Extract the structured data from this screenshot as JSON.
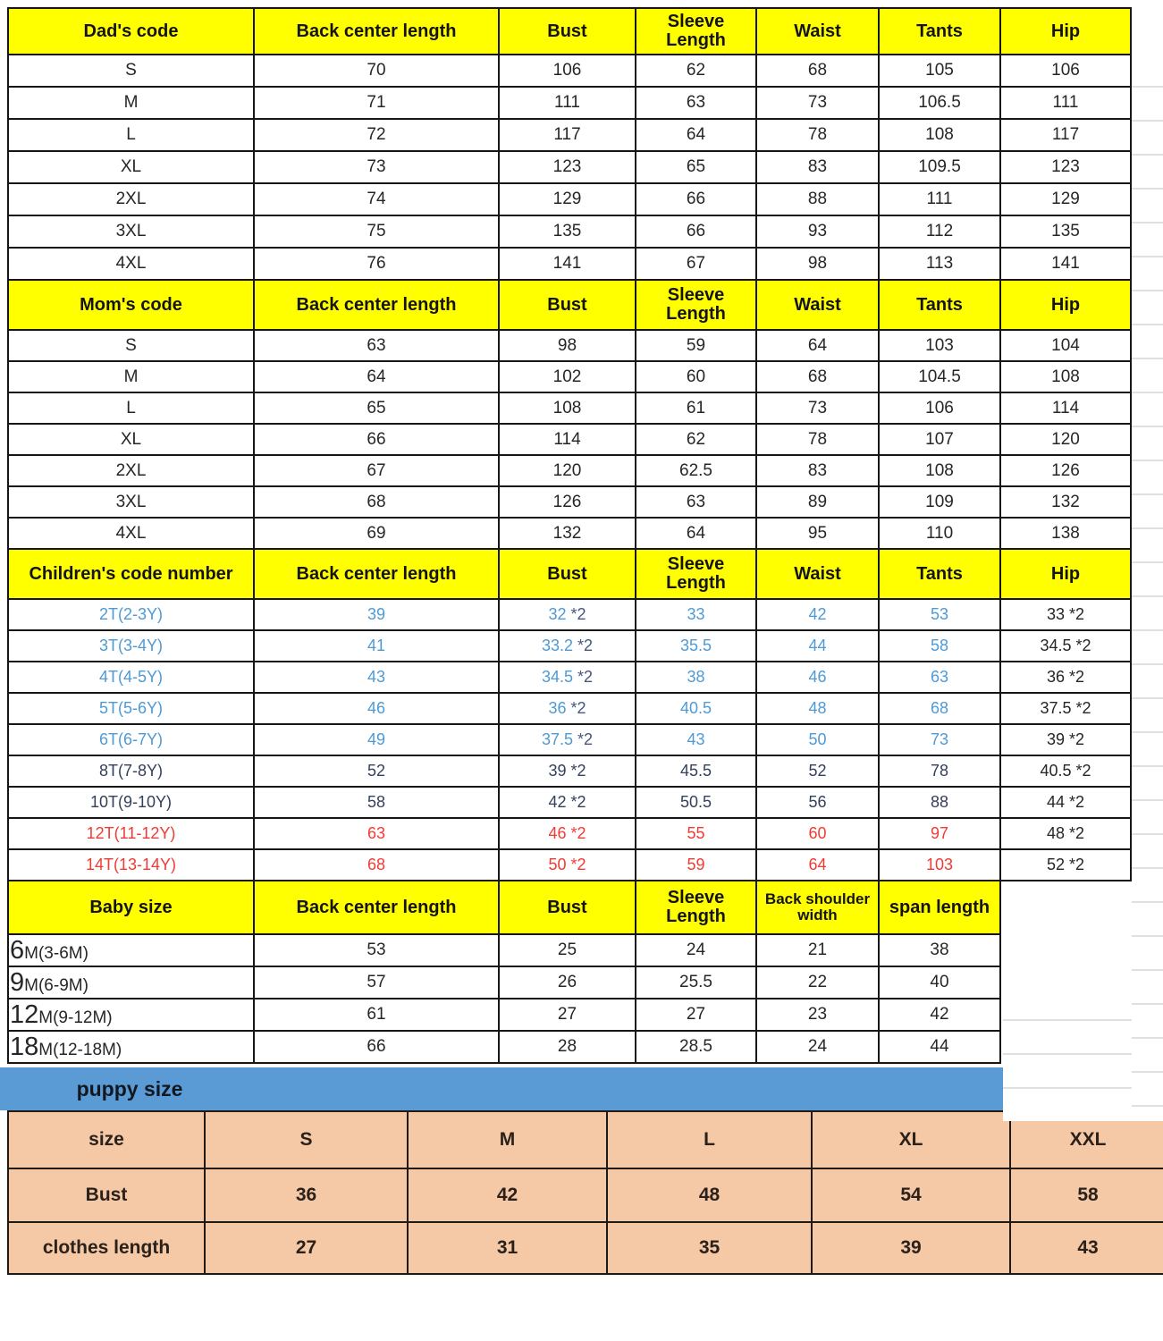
{
  "chart_data": [
    {
      "type": "table",
      "title": "Dad's code",
      "columns": [
        "Dad's code",
        "Back center length",
        "Bust",
        "Sleeve Length",
        "Waist",
        "Tants",
        "Hip"
      ],
      "rows": [
        [
          "S",
          "70",
          "106",
          "62",
          "68",
          "105",
          "106"
        ],
        [
          "M",
          "71",
          "111",
          "63",
          "73",
          "106.5",
          "111"
        ],
        [
          "L",
          "72",
          "117",
          "64",
          "78",
          "108",
          "117"
        ],
        [
          "XL",
          "73",
          "123",
          "65",
          "83",
          "109.5",
          "123"
        ],
        [
          "2XL",
          "74",
          "129",
          "66",
          "88",
          "111",
          "129"
        ],
        [
          "3XL",
          "75",
          "135",
          "66",
          "93",
          "112",
          "135"
        ],
        [
          "4XL",
          "76",
          "141",
          "67",
          "98",
          "113",
          "141"
        ]
      ]
    },
    {
      "type": "table",
      "title": "Mom's code",
      "columns": [
        "Mom's code",
        "Back center length",
        "Bust",
        "Sleeve Length",
        "Waist",
        "Tants",
        "Hip"
      ],
      "rows": [
        [
          "S",
          "63",
          "98",
          "59",
          "64",
          "103",
          "104"
        ],
        [
          "M",
          "64",
          "102",
          "60",
          "68",
          "104.5",
          "108"
        ],
        [
          "L",
          "65",
          "108",
          "61",
          "73",
          "106",
          "114"
        ],
        [
          "XL",
          "66",
          "114",
          "62",
          "78",
          "107",
          "120"
        ],
        [
          "2XL",
          "67",
          "120",
          "62.5",
          "83",
          "108",
          "126"
        ],
        [
          "3XL",
          "68",
          "126",
          "63",
          "89",
          "109",
          "132"
        ],
        [
          "4XL",
          "69",
          "132",
          "64",
          "95",
          "110",
          "138"
        ]
      ]
    },
    {
      "type": "table",
      "title": "Children's code number",
      "columns": [
        "Children's code number",
        "Back center length",
        "Bust",
        "Sleeve Length",
        "Waist",
        "Tants",
        "Hip"
      ],
      "rows": [
        [
          "2T(2-3Y)",
          "39",
          "32 *2",
          "33",
          "42",
          "53",
          "33 *2"
        ],
        [
          "3T(3-4Y)",
          "41",
          "33.2 *2",
          "35.5",
          "44",
          "58",
          "34.5 *2"
        ],
        [
          "4T(4-5Y)",
          "43",
          "34.5 *2",
          "38",
          "46",
          "63",
          "36 *2"
        ],
        [
          "5T(5-6Y)",
          "46",
          "36 *2",
          "40.5",
          "48",
          "68",
          "37.5 *2"
        ],
        [
          "6T(6-7Y)",
          "49",
          "37.5 *2",
          "43",
          "50",
          "73",
          "39 *2"
        ],
        [
          "8T(7-8Y)",
          "52",
          "39 *2",
          "45.5",
          "52",
          "78",
          "40.5 *2"
        ],
        [
          "10T(9-10Y)",
          "58",
          "42 *2",
          "50.5",
          "56",
          "88",
          "44 *2"
        ],
        [
          "12T(11-12Y)",
          "63",
          "46 *2",
          "55",
          "60",
          "97",
          "48 *2"
        ],
        [
          "14T(13-14Y)",
          "68",
          "50 *2",
          "59",
          "64",
          "103",
          "52 *2"
        ]
      ]
    },
    {
      "type": "table",
      "title": "Baby size",
      "columns": [
        "Baby size",
        "Back center length",
        "Bust",
        "Sleeve Length",
        "Back shoulder width",
        "span length"
      ],
      "rows": [
        [
          "6M(3-6M)",
          "53",
          "25",
          "24",
          "21",
          "38"
        ],
        [
          "9M(6-9M)",
          "57",
          "26",
          "25.5",
          "22",
          "40"
        ],
        [
          "12M(9-12M)",
          "61",
          "27",
          "27",
          "23",
          "42"
        ],
        [
          "18M(12-18M)",
          "66",
          "28",
          "28.5",
          "24",
          "44"
        ]
      ]
    },
    {
      "type": "table",
      "title": "puppy size",
      "columns": [
        "size",
        "S",
        "M",
        "L",
        "XL",
        "XXL"
      ],
      "rows": [
        [
          "Bust",
          "36",
          "42",
          "48",
          "54",
          "58"
        ],
        [
          "clothes length",
          "27",
          "31",
          "35",
          "39",
          "43"
        ]
      ]
    }
  ],
  "ui": {
    "puppy_banner_label": "puppy size",
    "colors": {
      "black": "#262626",
      "blue": "#4e9ad5",
      "navy": "#33405c",
      "slate": "#45577c",
      "red": "#f23a33",
      "dark": "#2a211b",
      "header_bg": "#ffff00",
      "banner_bg": "#5b9bd5",
      "puppy_bg": "#f6c9a6",
      "border": "#161616",
      "gridline": "#e0e0e0"
    },
    "tables": [
      {
        "el": "t-dad",
        "cols": 7,
        "headers": [
          "Dad's code",
          "Back center length",
          "Bust",
          "Sleeve Length",
          "Waist",
          "Tants",
          "Hip"
        ],
        "rows": [
          {
            "color": "black",
            "cells": [
              "S",
              "70",
              "106",
              "62",
              "68",
              "105",
              "106"
            ]
          },
          {
            "color": "black",
            "cells": [
              "M",
              "71",
              "111",
              "63",
              "73",
              "106.5",
              "111"
            ]
          },
          {
            "color": "black",
            "cells": [
              "L",
              "72",
              "117",
              "64",
              "78",
              "108",
              "117"
            ]
          },
          {
            "color": "black",
            "cells": [
              "XL",
              "73",
              "123",
              "65",
              "83",
              "109.5",
              "123"
            ]
          },
          {
            "color": "black",
            "cells": [
              "2XL",
              "74",
              "129",
              "66",
              "88",
              "111",
              "129"
            ]
          },
          {
            "color": "black",
            "cells": [
              "3XL",
              "75",
              "135",
              "66",
              "93",
              "112",
              "135"
            ]
          },
          {
            "color": "black",
            "cells": [
              "4XL",
              "76",
              "141",
              "67",
              "98",
              "113",
              "141"
            ]
          }
        ]
      },
      {
        "el": "t-mom",
        "cols": 7,
        "headers": [
          "Mom's code",
          "Back center length",
          "Bust",
          "Sleeve Length",
          "Waist",
          "Tants",
          "Hip"
        ],
        "rows": [
          {
            "color": "black",
            "cells": [
              "S",
              "63",
              "98",
              "59",
              "64",
              "103",
              "104"
            ]
          },
          {
            "color": "black",
            "cells": [
              "M",
              "64",
              "102",
              "60",
              "68",
              "104.5",
              "108"
            ]
          },
          {
            "color": "black",
            "cells": [
              "L",
              "65",
              "108",
              "61",
              "73",
              "106",
              "114"
            ]
          },
          {
            "color": "black",
            "cells": [
              "XL",
              "66",
              "114",
              "62",
              "78",
              "107",
              "120"
            ]
          },
          {
            "color": "black",
            "cells": [
              "2XL",
              "67",
              "120",
              "62.5",
              "83",
              "108",
              "126"
            ]
          },
          {
            "color": "black",
            "cells": [
              "3XL",
              "68",
              "126",
              "63",
              "89",
              "109",
              "132"
            ]
          },
          {
            "color": "black",
            "cells": [
              "4XL",
              "69",
              "132",
              "64",
              "95",
              "110",
              "138"
            ]
          }
        ]
      },
      {
        "el": "t-children",
        "cols": 7,
        "headers": [
          "Children's code number",
          "Back center length",
          "Bust",
          "Sleeve Length",
          "Waist",
          "Tants",
          "Hip"
        ],
        "rows": [
          {
            "color": "blue",
            "cells": [
              "2T(2-3Y)",
              "39",
              {
                "parts": [
                  {
                    "t": "32"
                  },
                  {
                    "t": " *2",
                    "c": "slate"
                  }
                ]
              },
              "33",
              "42",
              "53",
              {
                "t": "33 *2",
                "c": "black"
              }
            ]
          },
          {
            "color": "blue",
            "cells": [
              "3T(3-4Y)",
              "41",
              {
                "parts": [
                  {
                    "t": "33.2"
                  },
                  {
                    "t": " *2",
                    "c": "slate"
                  }
                ]
              },
              "35.5",
              "44",
              "58",
              {
                "t": "34.5 *2",
                "c": "black"
              }
            ]
          },
          {
            "color": "blue",
            "cells": [
              "4T(4-5Y)",
              "43",
              {
                "parts": [
                  {
                    "t": "34.5"
                  },
                  {
                    "t": " *2",
                    "c": "slate"
                  }
                ]
              },
              "38",
              "46",
              "63",
              {
                "t": "36 *2",
                "c": "black"
              }
            ]
          },
          {
            "color": "blue",
            "cells": [
              "5T(5-6Y)",
              "46",
              {
                "parts": [
                  {
                    "t": "36"
                  },
                  {
                    "t": " *2",
                    "c": "slate"
                  }
                ]
              },
              "40.5",
              "48",
              "68",
              {
                "t": "37.5 *2",
                "c": "black"
              }
            ]
          },
          {
            "color": "blue",
            "cells": [
              "6T(6-7Y)",
              "49",
              {
                "parts": [
                  {
                    "t": "37.5"
                  },
                  {
                    "t": " *2",
                    "c": "slate"
                  }
                ]
              },
              "43",
              "50",
              "73",
              {
                "t": "39 *2",
                "c": "black"
              }
            ]
          },
          {
            "color": "navy",
            "cells": [
              "8T(7-8Y)",
              "52",
              "39 *2",
              "45.5",
              "52",
              "78",
              {
                "t": "40.5 *2",
                "c": "black"
              }
            ]
          },
          {
            "color": "navy",
            "cells": [
              "10T(9-10Y)",
              "58",
              "42 *2",
              "50.5",
              "56",
              "88",
              {
                "t": "44 *2",
                "c": "black"
              }
            ]
          },
          {
            "color": "red",
            "cells": [
              "12T(11-12Y)",
              "63",
              "46 *2",
              "55",
              "60",
              "97",
              {
                "t": "48 *2",
                "c": "black"
              }
            ]
          },
          {
            "color": "red",
            "cells": [
              "14T(13-14Y)",
              "68",
              "50 *2",
              "59",
              "64",
              "103",
              {
                "t": "52 *2",
                "c": "black"
              }
            ]
          }
        ]
      },
      {
        "el": "t-baby",
        "cols": 6,
        "headers": [
          "Baby size",
          "Back center length",
          "Bust",
          "Sleeve Length",
          "Back shoulder width",
          "span length"
        ],
        "rows": [
          {
            "color": "black",
            "cells": [
              {
                "parts": [
                  {
                    "t": "6",
                    "big": true
                  },
                  {
                    "t": "M(3-6M)"
                  }
                ]
              },
              "53",
              "25",
              "24",
              "21",
              "38"
            ]
          },
          {
            "color": "black",
            "cells": [
              {
                "parts": [
                  {
                    "t": "9",
                    "big": true
                  },
                  {
                    "t": "M(6-9M)"
                  }
                ]
              },
              "57",
              "26",
              "25.5",
              "22",
              "40"
            ]
          },
          {
            "color": "black",
            "cells": [
              {
                "parts": [
                  {
                    "t": "12",
                    "big": true
                  },
                  {
                    "t": "M(9-12M)"
                  }
                ]
              },
              "61",
              "27",
              "27",
              "23",
              "42"
            ]
          },
          {
            "color": "black",
            "cells": [
              {
                "parts": [
                  {
                    "t": "18",
                    "big": true
                  },
                  {
                    "t": "M(12-18M)"
                  }
                ]
              },
              "66",
              "28",
              "28.5",
              "24",
              "44"
            ]
          }
        ]
      },
      {
        "el": "t-puppy",
        "cols": 6,
        "headers": [],
        "rows": [
          {
            "color": "dark",
            "cells": [
              "size",
              "S",
              "M",
              "L",
              "XL",
              "XXL"
            ]
          },
          {
            "color": "dark",
            "cells": [
              "Bust",
              "36",
              "42",
              "48",
              "54",
              "58"
            ]
          },
          {
            "color": "dark",
            "cells": [
              "clothes length",
              "27",
              "31",
              "35",
              "39",
              "43"
            ]
          }
        ]
      }
    ]
  }
}
